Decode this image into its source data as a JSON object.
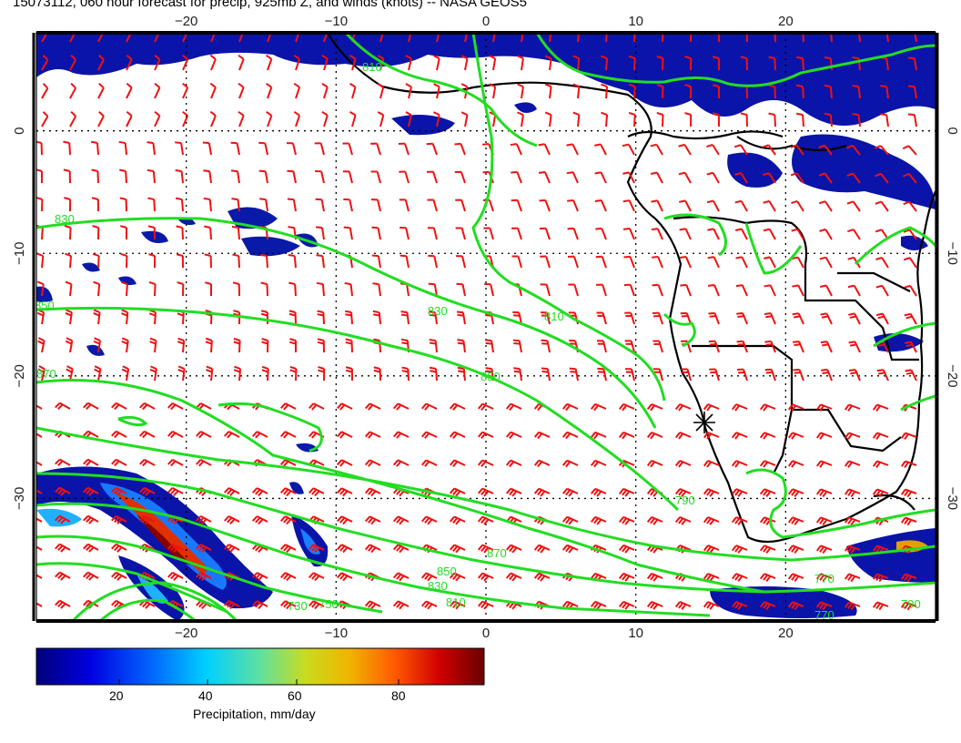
{
  "title": "15073112, 060 hour forecast for precip, 925mb Z, and winds (knots) -- NASA GEOS5",
  "map": {
    "lon_range": [
      -30,
      30
    ],
    "lat_range": [
      -40,
      8
    ],
    "lon_ticks": [
      -20,
      -10,
      0,
      10,
      20
    ],
    "lat_ticks": [
      0,
      -10,
      -20,
      -30
    ],
    "lon_tick_labels": [
      "−20",
      "−10",
      "0",
      "10",
      "20"
    ],
    "lat_tick_labels": [
      "0",
      "−10",
      "−20",
      "−30"
    ],
    "gridlines": "dotted",
    "contour_color": "#22dd22",
    "wind_barb_color": "#ee1111",
    "coast_color": "#000000",
    "contour_labels": [
      "810",
      "830",
      "850",
      "870",
      "850",
      "830",
      "810",
      "790",
      "770",
      "750",
      "730",
      "870",
      "850",
      "830",
      "810",
      "790",
      "770"
    ],
    "marker": "station-star"
  },
  "colorbar": {
    "title": "Precipitation, mm/day",
    "ticks": [
      "20",
      "40",
      "60",
      "80"
    ],
    "colors": [
      "#00007a",
      "#0000d8",
      "#0066ff",
      "#00c8ff",
      "#4de1a8",
      "#b5dc2a",
      "#f0c000",
      "#ff6a00",
      "#d60000",
      "#7a0000"
    ]
  }
}
